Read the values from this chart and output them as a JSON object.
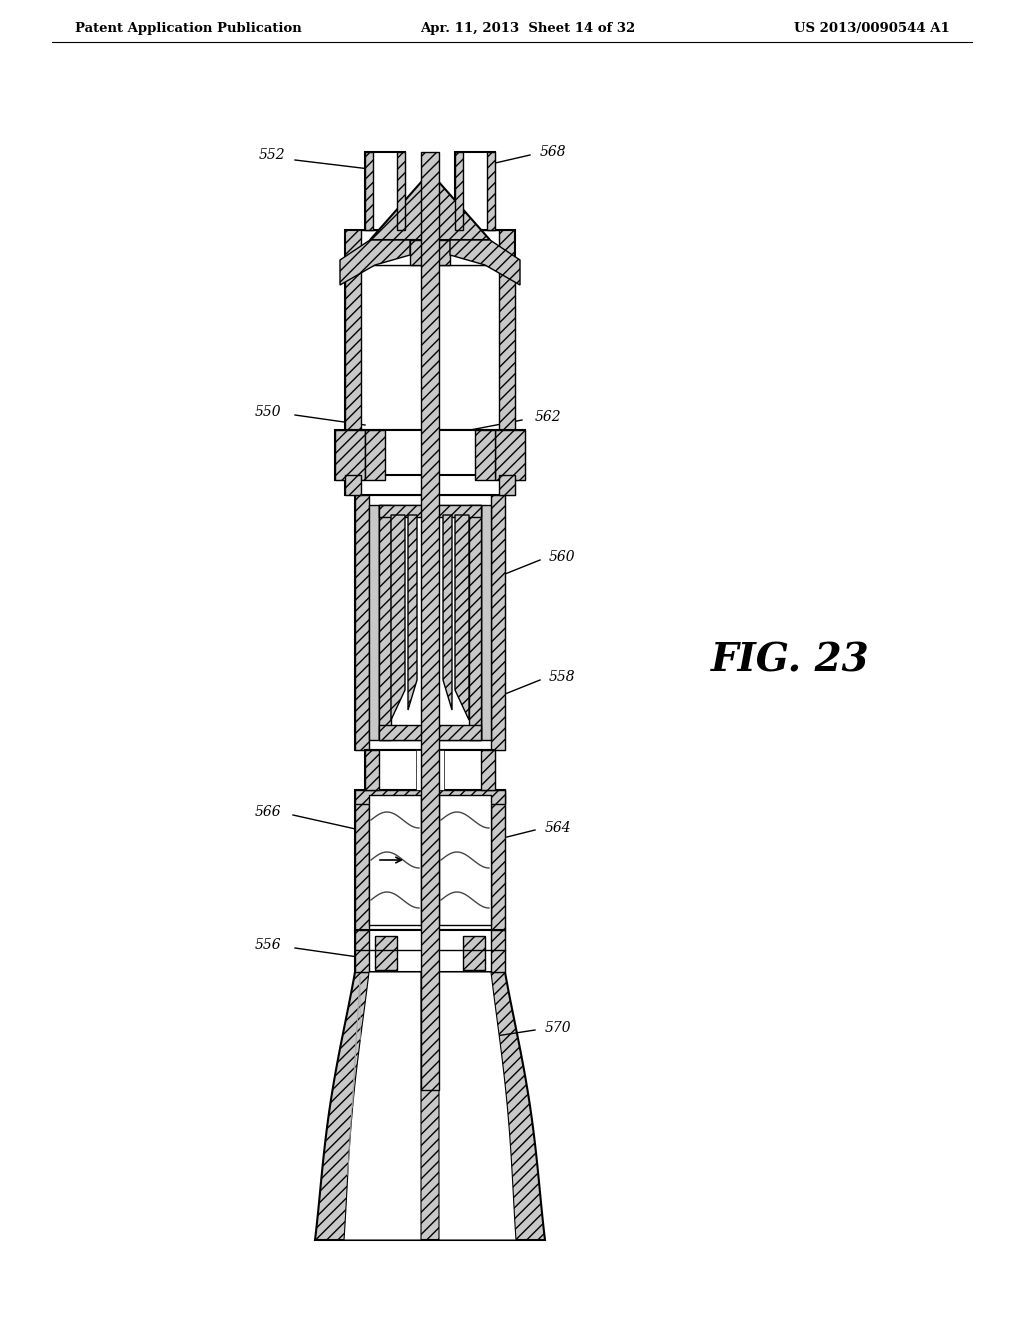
{
  "header_left": "Patent Application Publication",
  "header_middle": "Apr. 11, 2013  Sheet 14 of 32",
  "header_right": "US 2013/0090544 A1",
  "figure_label": "FIG. 23",
  "background_color": "#ffffff",
  "line_color": "#000000"
}
